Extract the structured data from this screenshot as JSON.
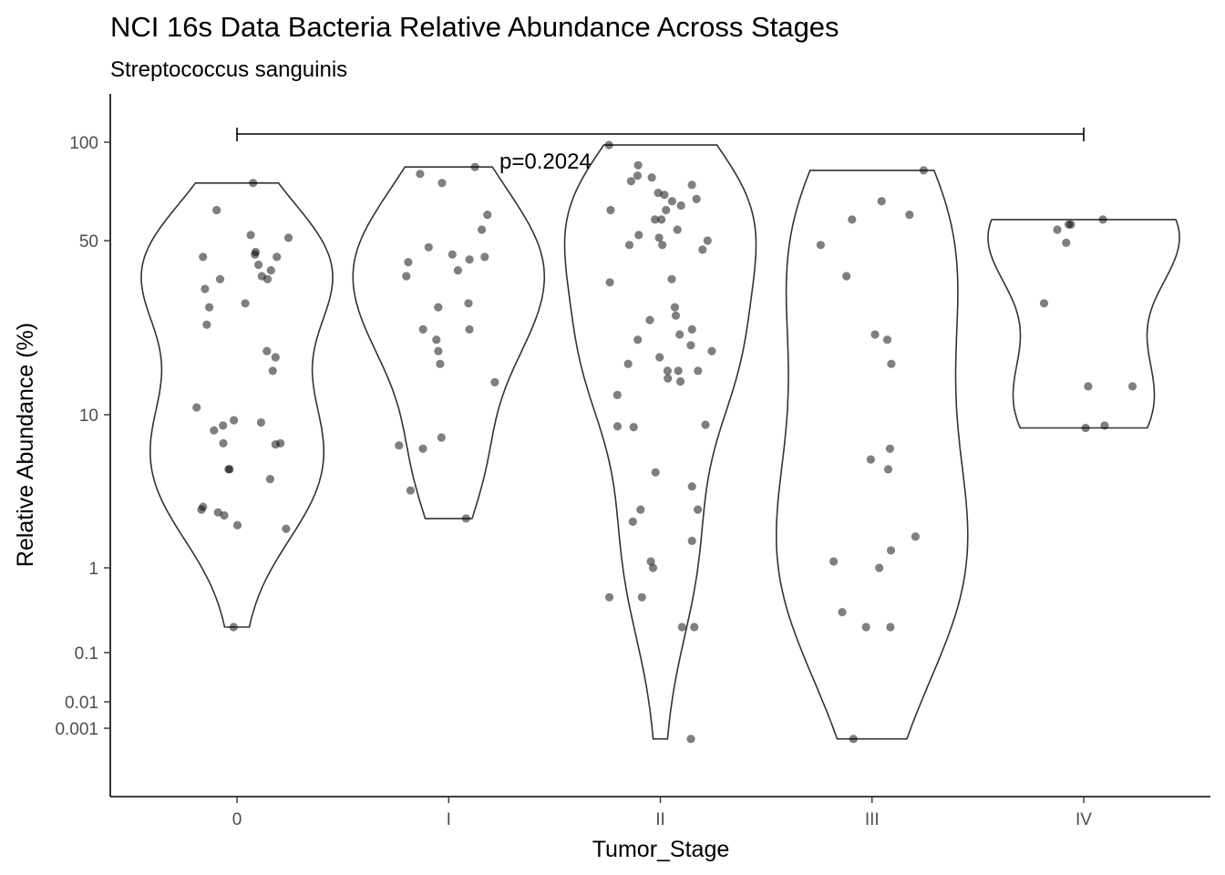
{
  "chart_data": {
    "type": "violin",
    "title": "NCI 16s Data Bacteria Relative Abundance Across Stages",
    "subtitle": "Streptococcus sanguinis",
    "xlabel": "Tumor_Stage",
    "ylabel": "Relative Abundance (%)",
    "y_scale": "pseudo-log",
    "y_ticks": [
      100,
      50,
      10,
      1,
      0.1,
      0.01,
      0.001
    ],
    "y_tick_labels": [
      "100",
      "50",
      "10",
      "1",
      "0.1",
      "0.01",
      "0.001"
    ],
    "categories": [
      "0",
      "I",
      "II",
      "III",
      "IV"
    ],
    "annotation": {
      "text": "p=0.2024",
      "from": "0",
      "to": "IV"
    },
    "points_color": "#000000",
    "points_alpha": 0.5,
    "violin_stroke": "#333333",
    "grid": false,
    "legend": "none",
    "series": [
      {
        "category": "0",
        "values": [
          75,
          62,
          52,
          51,
          45,
          44,
          43,
          43,
          40,
          38,
          36,
          35,
          35,
          32,
          28,
          27,
          23,
          18,
          17,
          15,
          10.7,
          9.2,
          8.9,
          8.5,
          7.9,
          6.5,
          6.5,
          6.4,
          4.4,
          4.4,
          3.8,
          2.5,
          2.4,
          2.3,
          2.2,
          1.9,
          1.8,
          0.2
        ]
      },
      {
        "category": "I",
        "values": [
          84,
          80,
          75,
          60,
          54,
          47,
          44,
          43,
          42,
          41,
          38,
          36,
          28,
          27,
          22,
          22,
          20,
          18,
          16,
          13.5,
          7.1,
          6.3,
          6.0,
          3.2,
          2.1
        ]
      },
      {
        "category": "II",
        "values": [
          98,
          85,
          79,
          78,
          76,
          74,
          70,
          69,
          67,
          66,
          64,
          62,
          62,
          58,
          58,
          54,
          52,
          51,
          50,
          48,
          48,
          46,
          35,
          34,
          27,
          25,
          24,
          22,
          21,
          20,
          19,
          18,
          17,
          16,
          15,
          15,
          15,
          14,
          13.6,
          12.0,
          8.6,
          8.4,
          8.3,
          4.2,
          3.4,
          2.4,
          2.4,
          2.0,
          1.5,
          1.1,
          1.0,
          0.45,
          0.45,
          0.2,
          0.2,
          0.0005
        ]
      },
      {
        "category": "III",
        "values": [
          82,
          66,
          60,
          58,
          48,
          36,
          21,
          20,
          16,
          6.0,
          5.1,
          4.4,
          1.6,
          1.3,
          1.1,
          1.0,
          0.3,
          0.2,
          0.2,
          0.0005
        ]
      },
      {
        "category": "IV",
        "values": [
          58,
          56,
          56,
          54,
          49,
          28,
          13,
          13,
          8.5,
          8.2
        ]
      }
    ]
  }
}
